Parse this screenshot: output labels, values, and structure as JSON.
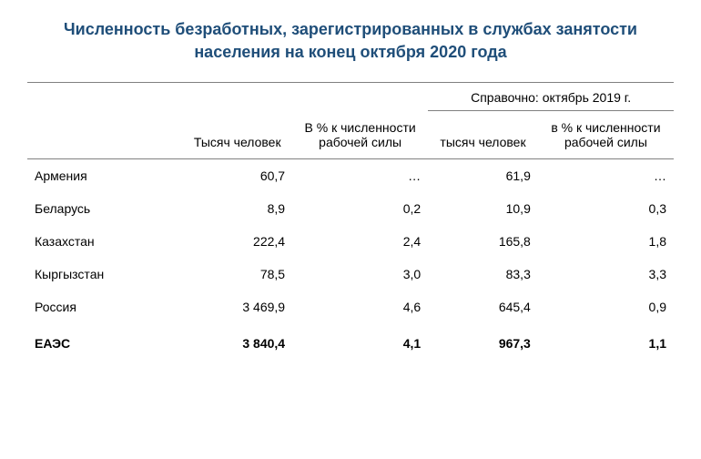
{
  "title": "Численность безработных, зарегистрированных в службах занятости населения на конец октября 2020 года",
  "columns": {
    "thousands": "Тысяч человек",
    "percent_labor": "В % к численности рабочей силы",
    "reference_header": "Справочно: октябрь 2019 г.",
    "ref_thousands": "тысяч человек",
    "ref_percent_labor": "в % к численности рабочей силы"
  },
  "rows": [
    {
      "country": "Армения",
      "thousands": "60,7",
      "percent": "…",
      "ref_thousands": "61,9",
      "ref_percent": "…"
    },
    {
      "country": "Беларусь",
      "thousands": "8,9",
      "percent": "0,2",
      "ref_thousands": "10,9",
      "ref_percent": "0,3"
    },
    {
      "country": "Казахстан",
      "thousands": "222,4",
      "percent": "2,4",
      "ref_thousands": "165,8",
      "ref_percent": "1,8"
    },
    {
      "country": "Кыргызстан",
      "thousands": "78,5",
      "percent": "3,0",
      "ref_thousands": "83,3",
      "ref_percent": "3,3"
    },
    {
      "country": "Россия",
      "thousands": "3 469,9",
      "percent": "4,6",
      "ref_thousands": "645,4",
      "ref_percent": "0,9"
    }
  ],
  "total": {
    "country": "ЕАЭС",
    "thousands": "3 840,4",
    "percent": "4,1",
    "ref_thousands": "967,3",
    "ref_percent": "1,1"
  },
  "style": {
    "title_color": "#1f4e79",
    "title_fontsize": 18,
    "body_fontsize": 14,
    "rule_color": "#808080",
    "background": "#ffffff",
    "text_color": "#000000"
  }
}
